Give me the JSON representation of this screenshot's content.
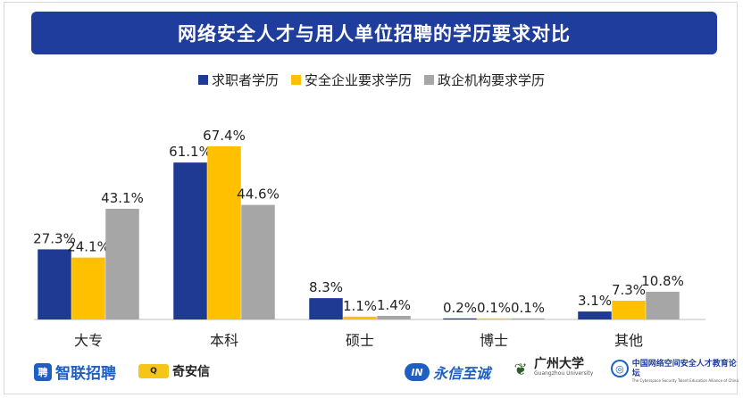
{
  "title": "网络安全人才与用人单位招聘的学历要求对比",
  "colors": {
    "title_bg": "#1f3d9c",
    "series": [
      "#1f3a93",
      "#ffc000",
      "#a6a6a6"
    ],
    "axis": "#bfbfbf"
  },
  "chart_data": {
    "type": "bar",
    "categories": [
      "大专",
      "本科",
      "硕士",
      "博士",
      "其他"
    ],
    "series": [
      {
        "name": "求职者学历",
        "values": [
          27.3,
          61.1,
          8.3,
          0.2,
          3.1
        ],
        "labels": [
          "27.3%",
          "61.1%",
          "8.3%",
          "0.2%",
          "3.1%"
        ]
      },
      {
        "name": "安全企业要求学历",
        "values": [
          24.1,
          67.4,
          1.1,
          0.1,
          7.3
        ],
        "labels": [
          "24.1%",
          "67.4%",
          "1.1%",
          "0.1%",
          "7.3%"
        ]
      },
      {
        "name": "政企机构要求学历",
        "values": [
          43.1,
          44.6,
          1.4,
          0.1,
          10.8
        ],
        "labels": [
          "43.1%",
          "44.6%",
          "1.4%",
          "0.1%",
          "10.8%"
        ]
      }
    ],
    "ylim": [
      0,
      67.4
    ],
    "legend": "top-center",
    "grid": false
  },
  "logos": {
    "zhilian": {
      "text": "智联招聘",
      "icon": "zhilian-logo-icon"
    },
    "qianxin": {
      "text": "奇安信",
      "icon": "qianxin-logo-icon"
    },
    "yongxin": {
      "text": "永信至诚",
      "icon": "yongxin-logo-icon"
    },
    "gzhu": {
      "text": "广州大学",
      "sub": "Guangzhou University",
      "icon": "gzhu-logo-icon"
    },
    "alliance": {
      "text": "中国网络空间安全人才教育论坛",
      "sub": "The Cyberspace Security Talent Education Alliance of China",
      "icon": "alliance-logo-icon"
    }
  }
}
